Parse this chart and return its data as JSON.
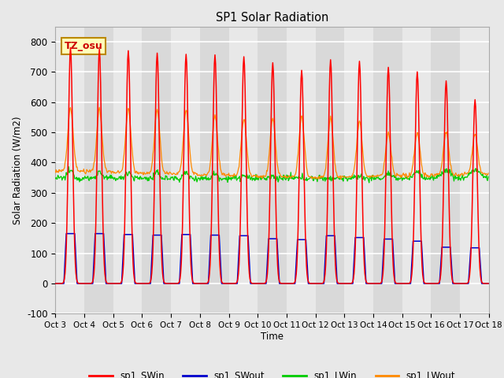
{
  "title": "SP1 Solar Radiation",
  "ylabel": "Solar Radiation (W/m2)",
  "xlabel": "Time",
  "ylim": [
    -100,
    850
  ],
  "xlim": [
    0,
    360
  ],
  "background_color": "#e8e8e8",
  "plot_bg_color": "#e8e8e8",
  "tz_label": "TZ_osu",
  "tz_box_facecolor": "#ffffbb",
  "tz_box_edgecolor": "#bb8800",
  "tz_text_color": "#cc0000",
  "series_colors": {
    "SWin": "#ff0000",
    "SWout": "#0000cc",
    "LWin": "#00cc00",
    "LWout": "#ff8800"
  },
  "xtick_labels": [
    "Oct 3",
    "Oct 4",
    "Oct 5",
    "Oct 6",
    "Oct 7",
    "Oct 8",
    "Oct 9",
    "Oct 10",
    "Oct 11",
    "Oct 12",
    "Oct 13",
    "Oct 14",
    "Oct 15",
    "Oct 16",
    "Oct 17",
    "Oct 18"
  ],
  "xtick_positions": [
    0,
    24,
    48,
    72,
    96,
    120,
    144,
    168,
    192,
    216,
    240,
    264,
    288,
    312,
    336,
    360
  ],
  "yticks": [
    -100,
    0,
    100,
    200,
    300,
    400,
    500,
    600,
    700,
    800
  ],
  "num_days": 15,
  "SWin_peaks": [
    780,
    775,
    770,
    762,
    758,
    756,
    750,
    730,
    705,
    740,
    735,
    715,
    700,
    670,
    608
  ],
  "SWout_peaks": [
    165,
    165,
    162,
    160,
    162,
    160,
    158,
    148,
    145,
    158,
    152,
    147,
    140,
    120,
    118
  ],
  "LWout_peaks": [
    580,
    578,
    576,
    574,
    574,
    554,
    543,
    546,
    550,
    548,
    540,
    496,
    500,
    500,
    495
  ],
  "LWout_base": [
    370,
    368,
    365,
    363,
    360,
    358,
    355,
    352,
    350,
    350,
    352,
    353,
    355,
    358,
    360
  ],
  "LWin_base": [
    328,
    326,
    326,
    325,
    325,
    325,
    320,
    318,
    315,
    312,
    318,
    325,
    335,
    345,
    348
  ],
  "LWin_peak_add": [
    45,
    42,
    42,
    40,
    40,
    38,
    36,
    36,
    34,
    36,
    38,
    38,
    35,
    30,
    28
  ]
}
